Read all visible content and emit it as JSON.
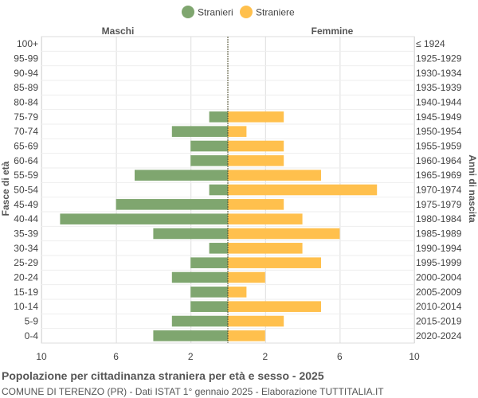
{
  "chart_data": {
    "type": "bar",
    "orientation": "horizontal-pyramid",
    "title": "Popolazione per cittadinanza straniera per età e sesso - 2025",
    "subtitle": "COMUNE DI TERENZO (PR) - Dati ISTAT 1° gennaio 2025 - Elaborazione TUTTITALIA.IT",
    "left_header": "Maschi",
    "right_header": "Femmine",
    "ylabel_left": "Fasce di età",
    "ylabel_right": "Anni di nascita",
    "xlim": [
      -10,
      10
    ],
    "x_ticks": [
      -10,
      -6,
      -2,
      2,
      6,
      10
    ],
    "x_tick_labels": [
      "10",
      "6",
      "2",
      "2",
      "6",
      "10"
    ],
    "grid": true,
    "legend_position": "top",
    "categories": [
      "100+",
      "95-99",
      "90-94",
      "85-89",
      "80-84",
      "75-79",
      "70-74",
      "65-69",
      "60-64",
      "55-59",
      "50-54",
      "45-49",
      "40-44",
      "35-39",
      "30-34",
      "25-29",
      "20-24",
      "15-19",
      "10-14",
      "5-9",
      "0-4"
    ],
    "birth_years": [
      "≤ 1924",
      "1925-1929",
      "1930-1934",
      "1935-1939",
      "1940-1944",
      "1945-1949",
      "1950-1954",
      "1955-1959",
      "1960-1964",
      "1965-1969",
      "1970-1974",
      "1975-1979",
      "1980-1984",
      "1985-1989",
      "1990-1994",
      "1995-1999",
      "2000-2004",
      "2005-2009",
      "2010-2014",
      "2015-2019",
      "2020-2024"
    ],
    "series": [
      {
        "name": "Stranieri",
        "color": "#7fa66f",
        "values": [
          0,
          0,
          0,
          0,
          0,
          1,
          3,
          2,
          2,
          5,
          1,
          6,
          9,
          4,
          1,
          2,
          3,
          2,
          2,
          3,
          4
        ]
      },
      {
        "name": "Straniere",
        "color": "#ffc04d",
        "values": [
          0,
          0,
          0,
          0,
          0,
          3,
          1,
          3,
          3,
          5,
          8,
          3,
          4,
          6,
          4,
          5,
          2,
          1,
          5,
          3,
          2
        ]
      }
    ]
  }
}
